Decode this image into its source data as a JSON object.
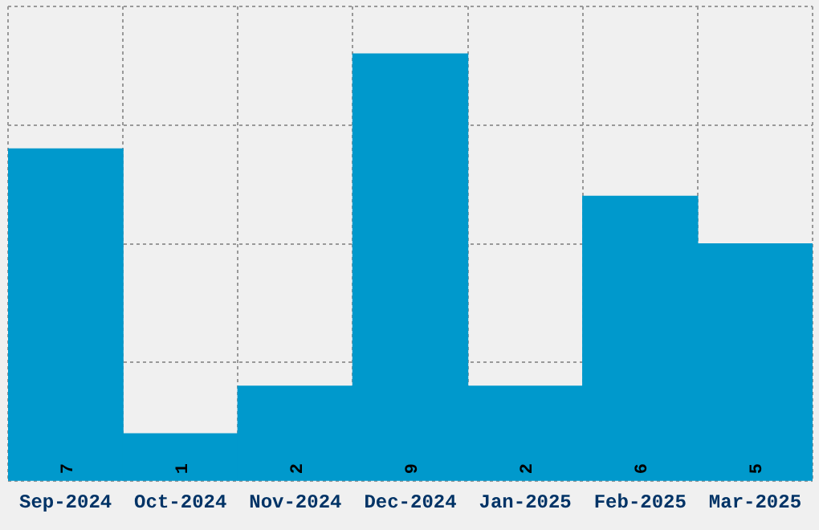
{
  "chart_data": {
    "type": "bar",
    "categories": [
      "Sep-2024",
      "Oct-2024",
      "Nov-2024",
      "Dec-2024",
      "Jan-2025",
      "Feb-2025",
      "Mar-2025"
    ],
    "values": [
      7,
      1,
      2,
      9,
      2,
      6,
      5
    ],
    "color": "#0099cc",
    "ylim": [
      0,
      10
    ],
    "yticks": [
      {
        "value": 0,
        "label": null
      },
      {
        "value": 2.5,
        "label": null
      },
      {
        "value": 5,
        "label": null
      },
      {
        "value": 7.5,
        "label": null
      },
      {
        "value": 10,
        "label": null
      }
    ],
    "tick_labels": "x",
    "grid": true,
    "data_labels": true
  }
}
